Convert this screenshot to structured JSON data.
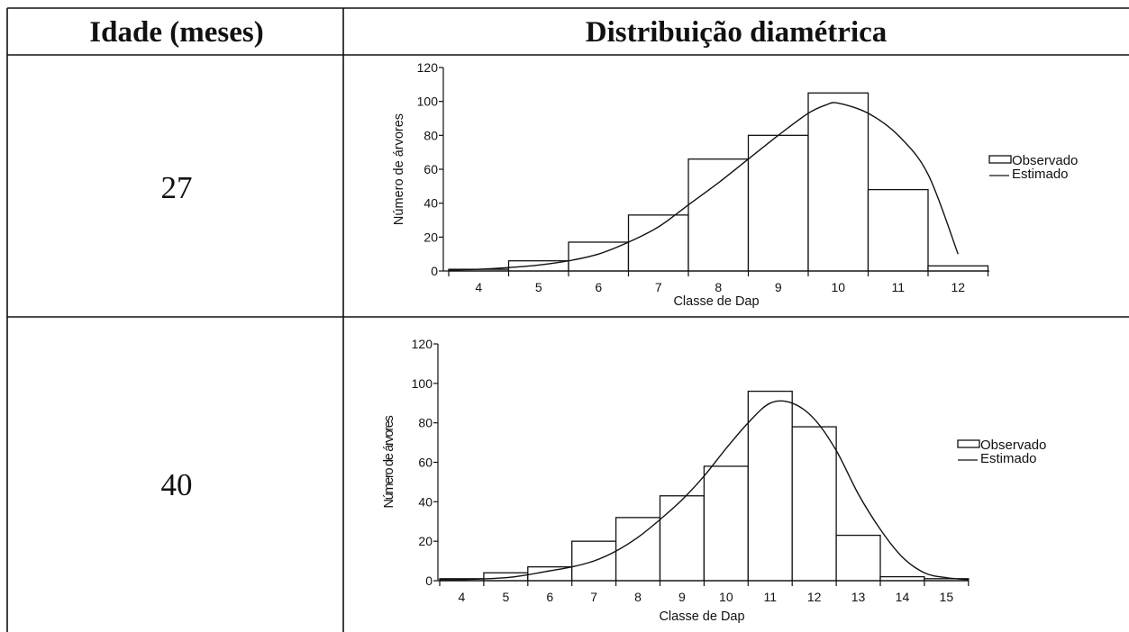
{
  "table": {
    "header_age": "Idade (meses)",
    "header_dist": "Distribuição diamétrica"
  },
  "chart_data": [
    {
      "type": "bar",
      "age": "27",
      "xlabel": "Classe de Dap",
      "ylabel": "Número de árvores",
      "ylim": [
        0,
        120
      ],
      "yticks": [
        0,
        20,
        40,
        60,
        80,
        100,
        120
      ],
      "categories": [
        "4",
        "5",
        "6",
        "7",
        "8",
        "9",
        "10",
        "11",
        "12"
      ],
      "series": [
        {
          "name": "Observado",
          "kind": "bar",
          "values": [
            1,
            6,
            17,
            33,
            66,
            80,
            105,
            48,
            3
          ]
        },
        {
          "name": "Estimado",
          "kind": "line",
          "x": [
            3.5,
            4.0,
            4.5,
            5.0,
            5.5,
            6.0,
            6.5,
            7.0,
            7.5,
            8.0,
            8.5,
            9.0,
            9.5,
            9.8,
            10.0,
            10.5,
            11.0,
            11.5,
            12.0
          ],
          "values": [
            0.5,
            1,
            2,
            3.5,
            6,
            10,
            17,
            26,
            39,
            52,
            66,
            80,
            93,
            98,
            99,
            93,
            80,
            57,
            10
          ]
        }
      ],
      "legend": "right",
      "grid": false
    },
    {
      "type": "bar",
      "age": "40",
      "xlabel": "Classe de Dap",
      "ylabel": "Número de árvores",
      "ylim": [
        0,
        120
      ],
      "yticks": [
        0,
        20,
        40,
        60,
        80,
        100,
        120
      ],
      "categories": [
        "4",
        "5",
        "6",
        "7",
        "8",
        "9",
        "10",
        "11",
        "12",
        "13",
        "14",
        "15"
      ],
      "series": [
        {
          "name": "Observado",
          "kind": "bar",
          "values": [
            1,
            4,
            7,
            20,
            32,
            43,
            58,
            96,
            78,
            23,
            2,
            1
          ]
        },
        {
          "name": "Estimado",
          "kind": "line",
          "x": [
            3.5,
            4.0,
            5.0,
            5.5,
            6.0,
            6.5,
            7.0,
            7.5,
            8.0,
            8.5,
            9.0,
            9.5,
            10.0,
            10.5,
            11.0,
            11.5,
            12.0,
            12.5,
            13.0,
            13.5,
            14.0,
            14.5,
            15.0,
            15.5
          ],
          "values": [
            0.5,
            0.5,
            1.5,
            3,
            5,
            7,
            10,
            15,
            22,
            31,
            41,
            53,
            67,
            80,
            90,
            90,
            82,
            66,
            44,
            26,
            12,
            4,
            1.5,
            0.5
          ]
        }
      ],
      "legend": "right",
      "grid": false
    }
  ]
}
